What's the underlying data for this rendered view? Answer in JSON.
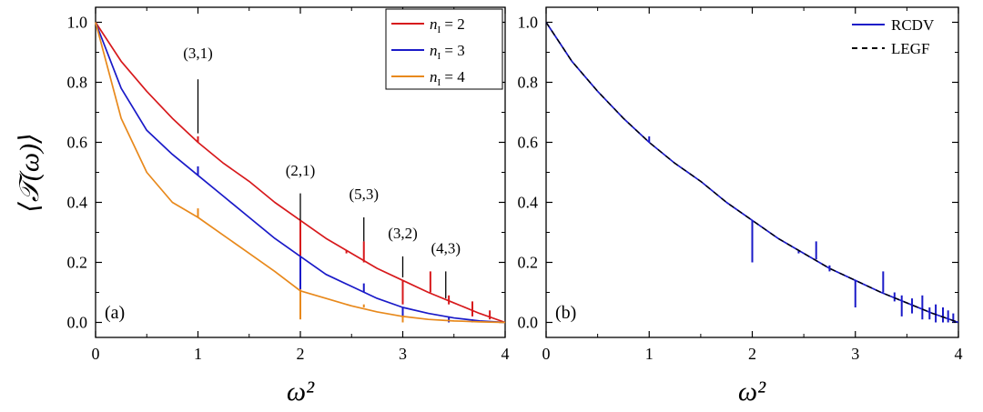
{
  "colors": {
    "n2": "#d7191c",
    "n3": "#1a1ac8",
    "n4": "#e8891c",
    "rcdv": "#1a1ac8",
    "legf": "#000000"
  },
  "chart_data": [
    {
      "type": "line",
      "panel_label": "(a)",
      "xlabel": "ω²",
      "ylabel": "⟨𝒯(ω)⟩",
      "xlim": [
        0,
        4
      ],
      "ylim": [
        -0.05,
        1.05
      ],
      "x_ticks": [
        "0",
        "1",
        "2",
        "3",
        "4"
      ],
      "y_ticks": [
        "0.0",
        "0.2",
        "0.4",
        "0.6",
        "0.8",
        "1.0"
      ],
      "legend_position": "top-right",
      "series": [
        {
          "name_prefix": "n",
          "name_sub": "I",
          "name_suffix": " = 2",
          "color_key": "n2",
          "x": [
            0,
            0.25,
            0.5,
            0.75,
            1.0,
            1.25,
            1.5,
            1.75,
            2.0,
            2.25,
            2.5,
            2.75,
            3.0,
            3.25,
            3.5,
            3.75,
            4.0
          ],
          "y": [
            1.0,
            0.87,
            0.77,
            0.68,
            0.6,
            0.53,
            0.47,
            0.4,
            0.34,
            0.28,
            0.23,
            0.18,
            0.14,
            0.1,
            0.065,
            0.03,
            0.0
          ],
          "spikes": [
            {
              "x": 1.0,
              "top": 0.62,
              "bottom": 0.6
            },
            {
              "x": 2.0,
              "top": 0.34,
              "bottom": 0.2
            },
            {
              "x": 2.45,
              "top": 0.24,
              "bottom": 0.23
            },
            {
              "x": 2.62,
              "top": 0.27,
              "bottom": 0.2
            },
            {
              "x": 3.0,
              "top": 0.14,
              "bottom": 0.06
            },
            {
              "x": 3.27,
              "top": 0.17,
              "bottom": 0.1
            },
            {
              "x": 3.45,
              "top": 0.09,
              "bottom": 0.06
            },
            {
              "x": 3.68,
              "top": 0.07,
              "bottom": 0.02
            },
            {
              "x": 3.85,
              "top": 0.04,
              "bottom": 0.01
            }
          ]
        },
        {
          "name_prefix": "n",
          "name_sub": "I",
          "name_suffix": " = 3",
          "color_key": "n3",
          "x": [
            0,
            0.25,
            0.5,
            0.75,
            1.0,
            1.25,
            1.5,
            1.75,
            2.0,
            2.25,
            2.5,
            2.75,
            3.0,
            3.25,
            3.5,
            3.75,
            4.0
          ],
          "y": [
            1.0,
            0.78,
            0.64,
            0.56,
            0.49,
            0.42,
            0.35,
            0.28,
            0.22,
            0.16,
            0.12,
            0.08,
            0.05,
            0.03,
            0.015,
            0.005,
            0.0
          ],
          "spikes": [
            {
              "x": 1.0,
              "top": 0.52,
              "bottom": 0.49
            },
            {
              "x": 2.0,
              "top": 0.22,
              "bottom": 0.11
            },
            {
              "x": 2.62,
              "top": 0.13,
              "bottom": 0.1
            },
            {
              "x": 3.0,
              "top": 0.05,
              "bottom": 0.0
            },
            {
              "x": 3.45,
              "top": 0.02,
              "bottom": 0.0
            },
            {
              "x": 3.68,
              "top": 0.01,
              "bottom": 0.0
            }
          ]
        },
        {
          "name_prefix": "n",
          "name_sub": "I",
          "name_suffix": " = 4",
          "color_key": "n4",
          "x": [
            0,
            0.25,
            0.5,
            0.75,
            1.0,
            1.25,
            1.5,
            1.75,
            2.0,
            2.25,
            2.5,
            2.75,
            3.0,
            3.25,
            3.5,
            3.75,
            4.0
          ],
          "y": [
            1.0,
            0.68,
            0.5,
            0.4,
            0.35,
            0.29,
            0.23,
            0.17,
            0.105,
            0.08,
            0.055,
            0.035,
            0.02,
            0.01,
            0.005,
            0.002,
            0.0
          ],
          "spikes": [
            {
              "x": 1.0,
              "top": 0.38,
              "bottom": 0.35
            },
            {
              "x": 2.0,
              "top": 0.11,
              "bottom": 0.01
            },
            {
              "x": 2.62,
              "top": 0.06,
              "bottom": 0.05
            },
            {
              "x": 3.0,
              "top": 0.02,
              "bottom": 0.0
            }
          ]
        }
      ],
      "annotations": [
        {
          "text": "(3,1)",
          "x": 1.0,
          "y_text": 0.88,
          "y_line_top": 0.81,
          "y_line_bottom": 0.63
        },
        {
          "text": "(2,1)",
          "x": 2.0,
          "y_text": 0.49,
          "y_line_top": 0.43,
          "y_line_bottom": 0.34
        },
        {
          "text": "(5,3)",
          "x": 2.62,
          "y_text": 0.41,
          "y_line_top": 0.35,
          "y_line_bottom": 0.27
        },
        {
          "text": "(3,2)",
          "x": 3.0,
          "y_text": 0.28,
          "y_line_top": 0.22,
          "y_line_bottom": 0.15
        },
        {
          "text": "(4,3)",
          "x": 3.42,
          "y_text": 0.23,
          "y_line_top": 0.17,
          "y_line_bottom": 0.08
        }
      ]
    },
    {
      "type": "line",
      "panel_label": "(b)",
      "xlabel": "ω²",
      "xlim": [
        0,
        4
      ],
      "ylim": [
        -0.05,
        1.05
      ],
      "x_ticks": [
        "0",
        "1",
        "2",
        "3",
        "4"
      ],
      "y_ticks": [
        "0.0",
        "0.2",
        "0.4",
        "0.6",
        "0.8",
        "1.0"
      ],
      "legend_position": "top-right",
      "series": [
        {
          "name": "RCDV",
          "color_key": "rcdv",
          "style": "solid",
          "x": [
            0,
            0.25,
            0.5,
            0.75,
            1.0,
            1.25,
            1.5,
            1.75,
            2.0,
            2.25,
            2.5,
            2.75,
            3.0,
            3.25,
            3.5,
            3.75,
            4.0
          ],
          "y": [
            1.0,
            0.87,
            0.77,
            0.68,
            0.6,
            0.53,
            0.47,
            0.4,
            0.34,
            0.28,
            0.23,
            0.18,
            0.14,
            0.1,
            0.065,
            0.03,
            0.0
          ],
          "spikes": [
            {
              "x": 1.0,
              "top": 0.62,
              "bottom": 0.6
            },
            {
              "x": 2.0,
              "top": 0.34,
              "bottom": 0.2
            },
            {
              "x": 2.45,
              "top": 0.24,
              "bottom": 0.23
            },
            {
              "x": 2.62,
              "top": 0.27,
              "bottom": 0.21
            },
            {
              "x": 2.75,
              "top": 0.19,
              "bottom": 0.17
            },
            {
              "x": 3.0,
              "top": 0.14,
              "bottom": 0.05
            },
            {
              "x": 3.27,
              "top": 0.17,
              "bottom": 0.1
            },
            {
              "x": 3.38,
              "top": 0.1,
              "bottom": 0.07
            },
            {
              "x": 3.45,
              "top": 0.09,
              "bottom": 0.02
            },
            {
              "x": 3.55,
              "top": 0.08,
              "bottom": 0.03
            },
            {
              "x": 3.65,
              "top": 0.09,
              "bottom": 0.01
            },
            {
              "x": 3.72,
              "top": 0.05,
              "bottom": 0.01
            },
            {
              "x": 3.78,
              "top": 0.06,
              "bottom": 0.0
            },
            {
              "x": 3.85,
              "top": 0.05,
              "bottom": 0.0
            },
            {
              "x": 3.9,
              "top": 0.04,
              "bottom": 0.0
            },
            {
              "x": 3.95,
              "top": 0.03,
              "bottom": 0.0
            }
          ]
        },
        {
          "name": "LEGF",
          "color_key": "legf",
          "style": "dashed",
          "x": [
            0,
            0.25,
            0.5,
            0.75,
            1.0,
            1.25,
            1.5,
            1.75,
            2.0,
            2.25,
            2.5,
            2.75,
            3.0,
            3.25,
            3.5,
            3.75,
            4.0
          ],
          "y": [
            1.0,
            0.87,
            0.77,
            0.68,
            0.6,
            0.53,
            0.47,
            0.4,
            0.34,
            0.28,
            0.23,
            0.18,
            0.14,
            0.1,
            0.065,
            0.03,
            0.0
          ],
          "spikes": []
        }
      ]
    }
  ]
}
